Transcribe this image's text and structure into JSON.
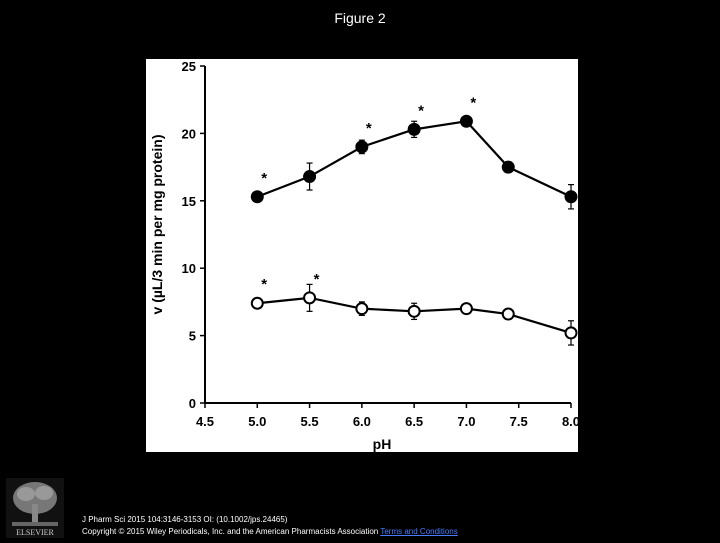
{
  "figure_title": "Figure 2",
  "footer": {
    "citation": "J Pharm Sci 2015 104:3146-3153 OI: (10.1002/jps.24465)",
    "copyright": "Copyright © 2015 Wiley Periodicals, Inc. and the American Pharmacists Association",
    "terms_link": "Terms and Conditions"
  },
  "logo": {
    "icon": "elsevier-tree-logo",
    "text": "ELSEVIER"
  },
  "chart_data": {
    "type": "line",
    "xlabel": "pH",
    "ylabel": "v (µL/3 min per mg protein)",
    "xlim": [
      4.5,
      8.0
    ],
    "ylim": [
      0,
      25
    ],
    "xticks": [
      "4.5",
      "5.0",
      "5.5",
      "6.0",
      "6.5",
      "7.0",
      "7.5",
      "8.0"
    ],
    "yticks": [
      "0",
      "5",
      "10",
      "15",
      "20",
      "25"
    ],
    "grid": false,
    "series": [
      {
        "marker": "filled-circle",
        "x": [
          5.0,
          5.5,
          6.0,
          6.5,
          7.0,
          7.4,
          8.0
        ],
        "y": [
          15.3,
          16.8,
          19.0,
          20.3,
          20.9,
          17.5,
          15.3
        ],
        "error": [
          0.3,
          1.0,
          0.5,
          0.6,
          0.3,
          0.4,
          0.9
        ],
        "significance": [
          "*",
          "",
          "*",
          "*",
          "*",
          "",
          "*"
        ]
      },
      {
        "marker": "open-circle",
        "x": [
          5.0,
          5.5,
          6.0,
          6.5,
          7.0,
          7.4,
          8.0
        ],
        "y": [
          7.4,
          7.8,
          7.0,
          6.8,
          7.0,
          6.6,
          5.2
        ],
        "error": [
          0.3,
          1.0,
          0.5,
          0.6,
          0.3,
          0.4,
          0.9
        ],
        "significance": [
          "*",
          "*",
          "",
          "",
          "",
          "",
          "*"
        ]
      }
    ],
    "colors": {
      "line": "#000000",
      "background": "#ffffff"
    }
  }
}
